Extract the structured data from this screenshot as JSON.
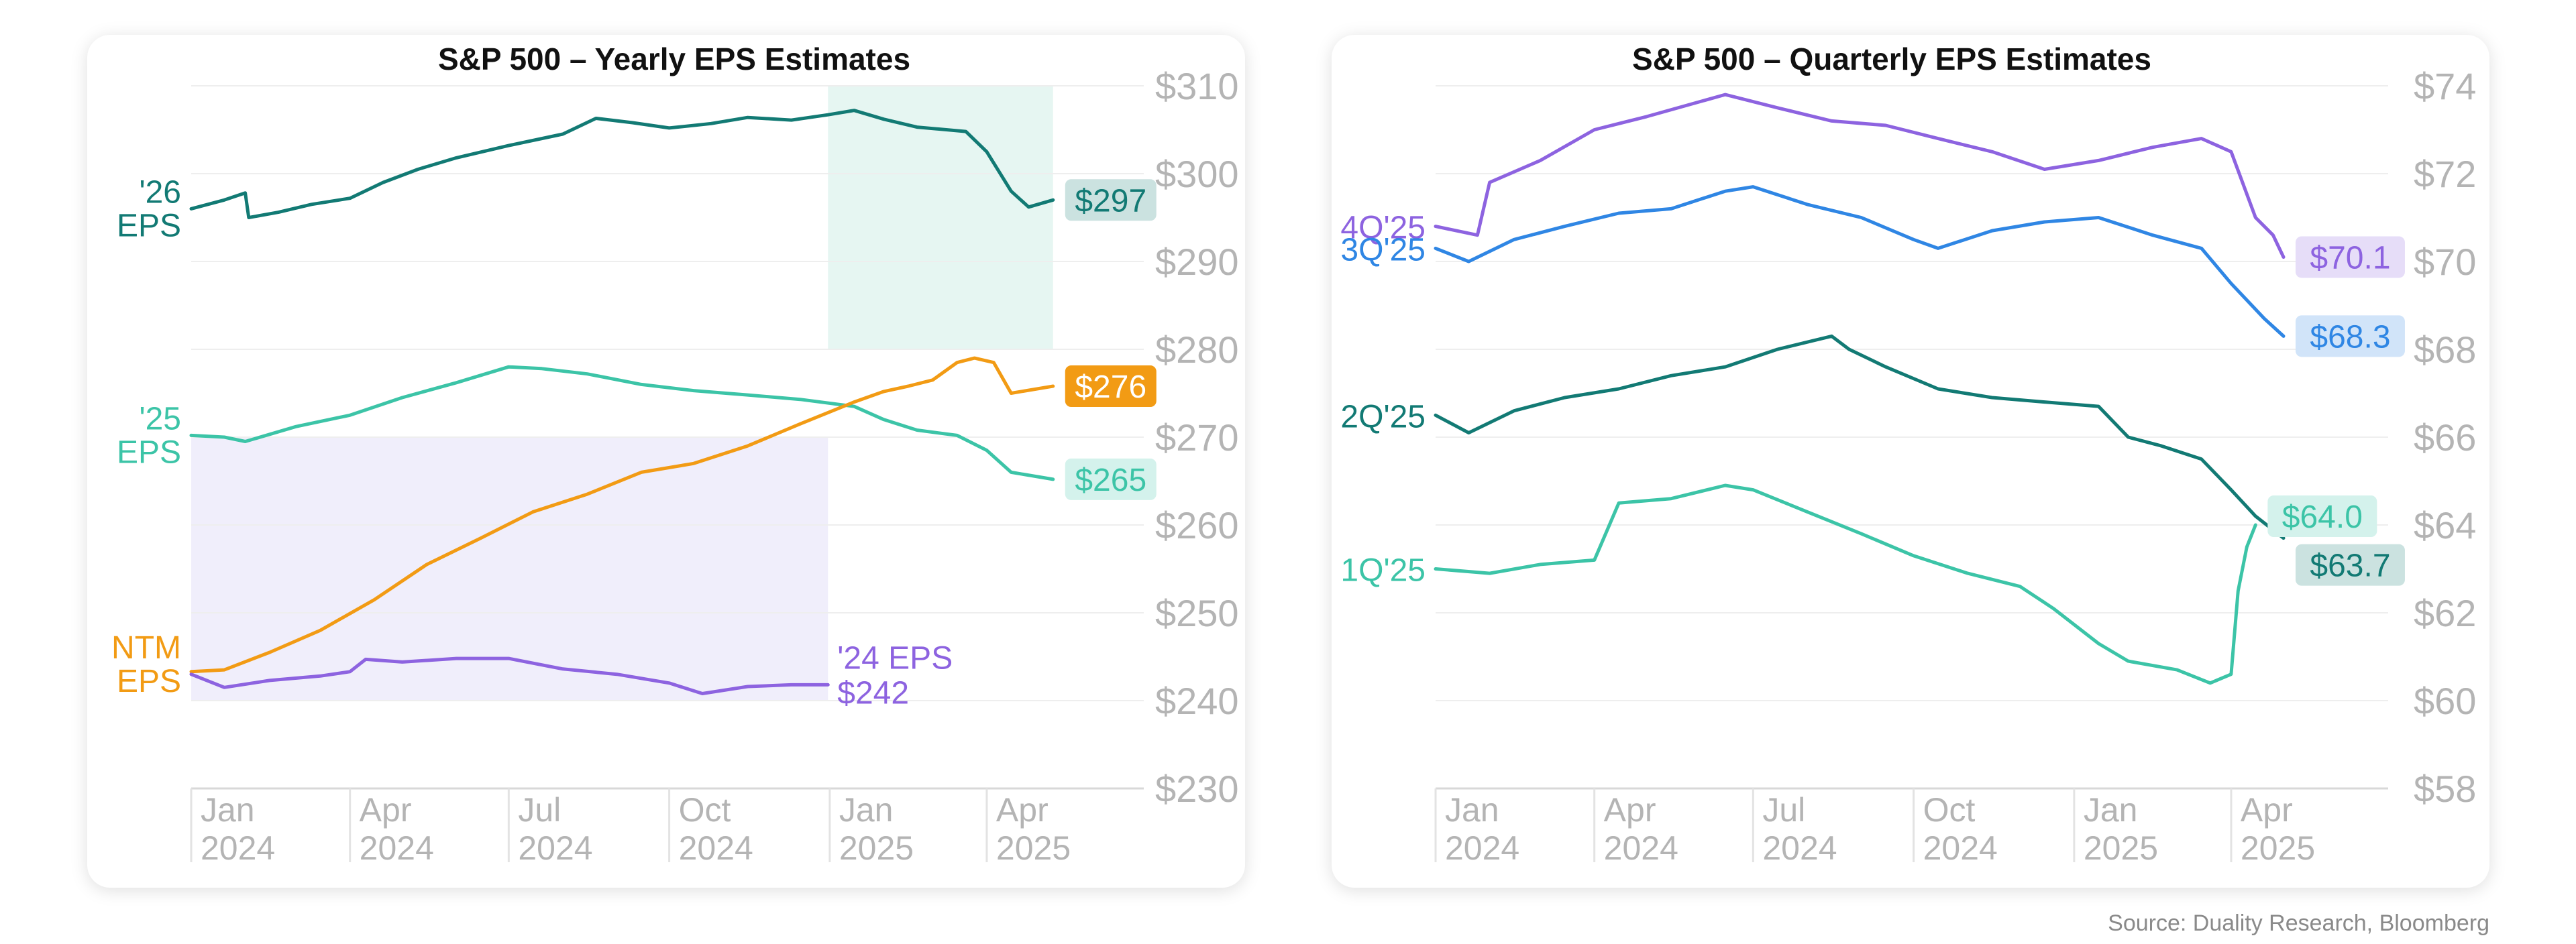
{
  "source": "Source: Duality Research, Bloomberg",
  "colors": {
    "eps26": "#127a74",
    "eps25": "#3cc4a7",
    "ntm": "#f29b14",
    "eps24": "#8d63e0",
    "q1": "#3cc4a7",
    "q2": "#127a74",
    "q3": "#2f86e4",
    "q4": "#8d63e0",
    "axis": "#b4b4b4",
    "grid": "#eeeeee",
    "region_green": "#e6f6f2",
    "region_purple": "#f0eefb"
  },
  "chart_data": [
    {
      "type": "line",
      "title": "S&P 500 – Yearly EPS Estimates",
      "x_ticks": [
        {
          "date": "2024-01-01",
          "line1": "Jan",
          "line2": "2024"
        },
        {
          "date": "2024-04-01",
          "line1": "Apr",
          "line2": "2024"
        },
        {
          "date": "2024-07-01",
          "line1": "Jul",
          "line2": "2024"
        },
        {
          "date": "2024-10-01",
          "line1": "Oct",
          "line2": "2024"
        },
        {
          "date": "2025-01-01",
          "line1": "Jan",
          "line2": "2025"
        },
        {
          "date": "2025-04-01",
          "line1": "Apr",
          "line2": "2025"
        }
      ],
      "xlim": [
        "2024-01-01",
        "2025-06-30"
      ],
      "ylim": [
        230,
        310
      ],
      "y_ticks": [
        {
          "value": 230,
          "label": "$230"
        },
        {
          "value": 240,
          "label": "$240"
        },
        {
          "value": 250,
          "label": "$250"
        },
        {
          "value": 260,
          "label": "$260"
        },
        {
          "value": 270,
          "label": "$270"
        },
        {
          "value": 280,
          "label": "$280"
        },
        {
          "value": 290,
          "label": "$290"
        },
        {
          "value": 300,
          "label": "$300"
        },
        {
          "value": 310,
          "label": "$310"
        }
      ],
      "y_axis_side": "right",
      "grid": true,
      "shaded_regions": [
        {
          "from": "2024-12-31",
          "to": "2025-05-09",
          "ymin": 280,
          "ymax": 310,
          "color": "region_green"
        },
        {
          "from": "2024-01-01",
          "to": "2024-12-31",
          "ymin": 240,
          "ymax": 270,
          "color": "region_purple"
        }
      ],
      "series": [
        {
          "key": "eps26",
          "label_lines": [
            "'26",
            "EPS"
          ],
          "label_anchor": "end",
          "end_value_label": "$297",
          "end_label_style": "soft",
          "points": [
            [
              "2024-01-01",
              296.0
            ],
            [
              "2024-01-20",
              297.0
            ],
            [
              "2024-02-01",
              297.8
            ],
            [
              "2024-02-03",
              295.0
            ],
            [
              "2024-02-20",
              295.6
            ],
            [
              "2024-03-10",
              296.5
            ],
            [
              "2024-04-01",
              297.2
            ],
            [
              "2024-04-20",
              299.0
            ],
            [
              "2024-05-10",
              300.5
            ],
            [
              "2024-06-01",
              301.8
            ],
            [
              "2024-07-01",
              303.2
            ],
            [
              "2024-08-01",
              304.5
            ],
            [
              "2024-08-20",
              306.3
            ],
            [
              "2024-09-10",
              305.8
            ],
            [
              "2024-10-01",
              305.2
            ],
            [
              "2024-10-25",
              305.7
            ],
            [
              "2024-11-15",
              306.4
            ],
            [
              "2024-12-10",
              306.1
            ],
            [
              "2024-12-31",
              306.7
            ],
            [
              "2025-01-15",
              307.2
            ],
            [
              "2025-02-01",
              306.2
            ],
            [
              "2025-02-20",
              305.3
            ],
            [
              "2025-03-20",
              304.8
            ],
            [
              "2025-04-01",
              302.5
            ],
            [
              "2025-04-15",
              298.0
            ],
            [
              "2025-04-25",
              296.2
            ],
            [
              "2025-05-09",
              297.0
            ]
          ]
        },
        {
          "key": "eps25",
          "label_lines": [
            "'25",
            "EPS"
          ],
          "label_anchor": "end",
          "end_value_label": "$265",
          "end_label_style": "soft",
          "points": [
            [
              "2024-01-01",
              270.2
            ],
            [
              "2024-01-20",
              270.0
            ],
            [
              "2024-02-01",
              269.5
            ],
            [
              "2024-03-01",
              271.2
            ],
            [
              "2024-04-01",
              272.5
            ],
            [
              "2024-05-01",
              274.5
            ],
            [
              "2024-06-01",
              276.2
            ],
            [
              "2024-07-01",
              278.0
            ],
            [
              "2024-07-20",
              277.8
            ],
            [
              "2024-08-15",
              277.2
            ],
            [
              "2024-09-15",
              276.0
            ],
            [
              "2024-10-15",
              275.3
            ],
            [
              "2024-11-15",
              274.8
            ],
            [
              "2024-12-15",
              274.3
            ],
            [
              "2025-01-15",
              273.5
            ],
            [
              "2025-02-01",
              272.0
            ],
            [
              "2025-02-20",
              270.8
            ],
            [
              "2025-03-15",
              270.2
            ],
            [
              "2025-04-01",
              268.5
            ],
            [
              "2025-04-15",
              266.0
            ],
            [
              "2025-05-09",
              265.2
            ]
          ]
        },
        {
          "key": "ntm",
          "label_lines": [
            "NTM",
            "EPS"
          ],
          "label_anchor": "end",
          "end_value_label": "$276",
          "end_label_style": "solid",
          "points": [
            [
              "2024-01-01",
              243.3
            ],
            [
              "2024-01-20",
              243.5
            ],
            [
              "2024-02-15",
              245.5
            ],
            [
              "2024-03-15",
              248.0
            ],
            [
              "2024-04-15",
              251.5
            ],
            [
              "2024-05-15",
              255.5
            ],
            [
              "2024-06-15",
              258.5
            ],
            [
              "2024-07-15",
              261.5
            ],
            [
              "2024-08-15",
              263.5
            ],
            [
              "2024-09-15",
              266.0
            ],
            [
              "2024-10-15",
              267.0
            ],
            [
              "2024-11-15",
              269.0
            ],
            [
              "2024-12-15",
              271.5
            ],
            [
              "2025-01-15",
              274.0
            ],
            [
              "2025-02-01",
              275.2
            ],
            [
              "2025-02-15",
              275.8
            ],
            [
              "2025-03-01",
              276.5
            ],
            [
              "2025-03-15",
              278.5
            ],
            [
              "2025-03-25",
              279.0
            ],
            [
              "2025-04-05",
              278.5
            ],
            [
              "2025-04-15",
              275.0
            ],
            [
              "2025-05-09",
              275.8
            ]
          ]
        },
        {
          "key": "eps24",
          "label_lines": [
            "'24 EPS",
            "$242"
          ],
          "label_anchor": "start",
          "points": [
            [
              "2024-01-01",
              243.0
            ],
            [
              "2024-01-20",
              241.5
            ],
            [
              "2024-02-15",
              242.3
            ],
            [
              "2024-03-15",
              242.8
            ],
            [
              "2024-04-01",
              243.3
            ],
            [
              "2024-04-10",
              244.7
            ],
            [
              "2024-05-01",
              244.4
            ],
            [
              "2024-06-01",
              244.8
            ],
            [
              "2024-07-01",
              244.8
            ],
            [
              "2024-08-01",
              243.6
            ],
            [
              "2024-09-01",
              243.0
            ],
            [
              "2024-10-01",
              242.0
            ],
            [
              "2024-10-20",
              240.8
            ],
            [
              "2024-11-15",
              241.6
            ],
            [
              "2024-12-10",
              241.8
            ],
            [
              "2024-12-31",
              241.8
            ]
          ]
        }
      ]
    },
    {
      "type": "line",
      "title": "S&P 500 – Quarterly EPS Estimates",
      "x_ticks": [
        {
          "date": "2024-01-01",
          "line1": "Jan",
          "line2": "2024"
        },
        {
          "date": "2024-04-01",
          "line1": "Apr",
          "line2": "2024"
        },
        {
          "date": "2024-07-01",
          "line1": "Jul",
          "line2": "2024"
        },
        {
          "date": "2024-10-01",
          "line1": "Oct",
          "line2": "2024"
        },
        {
          "date": "2025-01-01",
          "line1": "Jan",
          "line2": "2025"
        },
        {
          "date": "2025-04-01",
          "line1": "Apr",
          "line2": "2025"
        }
      ],
      "xlim": [
        "2024-01-01",
        "2025-06-30"
      ],
      "ylim": [
        58,
        74
      ],
      "y_ticks": [
        {
          "value": 58,
          "label": "$58"
        },
        {
          "value": 60,
          "label": "$60"
        },
        {
          "value": 62,
          "label": "$62"
        },
        {
          "value": 64,
          "label": "$64"
        },
        {
          "value": 66,
          "label": "$66"
        },
        {
          "value": 68,
          "label": "$68"
        },
        {
          "value": 70,
          "label": "$70"
        },
        {
          "value": 72,
          "label": "$72"
        },
        {
          "value": 74,
          "label": "$74"
        }
      ],
      "y_axis_side": "right",
      "grid": true,
      "shaded_regions": [],
      "series": [
        {
          "key": "q4",
          "label_lines": [
            "4Q'25"
          ],
          "label_anchor": "end",
          "end_value_label": "$70.1",
          "end_label_style": "soft",
          "points": [
            [
              "2024-01-01",
              70.8
            ],
            [
              "2024-01-25",
              70.6
            ],
            [
              "2024-02-01",
              71.8
            ],
            [
              "2024-03-01",
              72.3
            ],
            [
              "2024-04-01",
              73.0
            ],
            [
              "2024-05-01",
              73.3
            ],
            [
              "2024-06-15",
              73.8
            ],
            [
              "2024-07-15",
              73.5
            ],
            [
              "2024-08-15",
              73.2
            ],
            [
              "2024-09-15",
              73.1
            ],
            [
              "2024-10-15",
              72.8
            ],
            [
              "2024-11-15",
              72.5
            ],
            [
              "2024-12-15",
              72.1
            ],
            [
              "2025-01-15",
              72.3
            ],
            [
              "2025-02-15",
              72.6
            ],
            [
              "2025-03-15",
              72.8
            ],
            [
              "2025-04-01",
              72.5
            ],
            [
              "2025-04-15",
              71.0
            ],
            [
              "2025-04-25",
              70.6
            ],
            [
              "2025-05-01",
              70.1
            ]
          ]
        },
        {
          "key": "q3",
          "label_lines": [
            "3Q'25"
          ],
          "label_anchor": "end",
          "end_value_label": "$68.3",
          "end_label_style": "soft",
          "points": [
            [
              "2024-01-01",
              70.3
            ],
            [
              "2024-01-20",
              70.0
            ],
            [
              "2024-02-15",
              70.5
            ],
            [
              "2024-03-15",
              70.8
            ],
            [
              "2024-04-15",
              71.1
            ],
            [
              "2024-05-15",
              71.2
            ],
            [
              "2024-06-15",
              71.6
            ],
            [
              "2024-07-01",
              71.7
            ],
            [
              "2024-08-01",
              71.3
            ],
            [
              "2024-09-01",
              71.0
            ],
            [
              "2024-10-01",
              70.5
            ],
            [
              "2024-10-15",
              70.3
            ],
            [
              "2024-11-15",
              70.7
            ],
            [
              "2024-12-15",
              70.9
            ],
            [
              "2025-01-15",
              71.0
            ],
            [
              "2025-02-15",
              70.6
            ],
            [
              "2025-03-15",
              70.3
            ],
            [
              "2025-04-01",
              69.5
            ],
            [
              "2025-04-20",
              68.7
            ],
            [
              "2025-05-01",
              68.3
            ]
          ]
        },
        {
          "key": "q2",
          "label_lines": [
            "2Q'25"
          ],
          "label_anchor": "end",
          "end_value_label": "$63.7",
          "end_label_style": "soft",
          "points": [
            [
              "2024-01-01",
              66.5
            ],
            [
              "2024-01-20",
              66.1
            ],
            [
              "2024-02-15",
              66.6
            ],
            [
              "2024-03-15",
              66.9
            ],
            [
              "2024-04-15",
              67.1
            ],
            [
              "2024-05-15",
              67.4
            ],
            [
              "2024-06-15",
              67.6
            ],
            [
              "2024-07-15",
              68.0
            ],
            [
              "2024-08-15",
              68.3
            ],
            [
              "2024-08-25",
              68.0
            ],
            [
              "2024-09-15",
              67.6
            ],
            [
              "2024-10-15",
              67.1
            ],
            [
              "2024-11-15",
              66.9
            ],
            [
              "2024-12-15",
              66.8
            ],
            [
              "2025-01-15",
              66.7
            ],
            [
              "2025-02-01",
              66.0
            ],
            [
              "2025-02-20",
              65.8
            ],
            [
              "2025-03-15",
              65.5
            ],
            [
              "2025-04-01",
              64.8
            ],
            [
              "2025-04-15",
              64.2
            ],
            [
              "2025-05-01",
              63.7
            ]
          ]
        },
        {
          "key": "q1",
          "label_lines": [
            "1Q'25"
          ],
          "label_anchor": "end",
          "end_value_label": "$64.0",
          "end_label_style": "soft",
          "points": [
            [
              "2024-01-01",
              63.0
            ],
            [
              "2024-02-01",
              62.9
            ],
            [
              "2024-03-01",
              63.1
            ],
            [
              "2024-04-01",
              63.2
            ],
            [
              "2024-04-15",
              64.5
            ],
            [
              "2024-05-15",
              64.6
            ],
            [
              "2024-06-15",
              64.9
            ],
            [
              "2024-07-01",
              64.8
            ],
            [
              "2024-08-01",
              64.3
            ],
            [
              "2024-09-01",
              63.8
            ],
            [
              "2024-10-01",
              63.3
            ],
            [
              "2024-11-01",
              62.9
            ],
            [
              "2024-12-01",
              62.6
            ],
            [
              "2024-12-20",
              62.1
            ],
            [
              "2025-01-15",
              61.3
            ],
            [
              "2025-02-01",
              60.9
            ],
            [
              "2025-03-01",
              60.7
            ],
            [
              "2025-03-20",
              60.4
            ],
            [
              "2025-04-01",
              60.6
            ],
            [
              "2025-04-05",
              62.5
            ],
            [
              "2025-04-10",
              63.5
            ],
            [
              "2025-04-15",
              64.0
            ]
          ]
        }
      ]
    }
  ]
}
